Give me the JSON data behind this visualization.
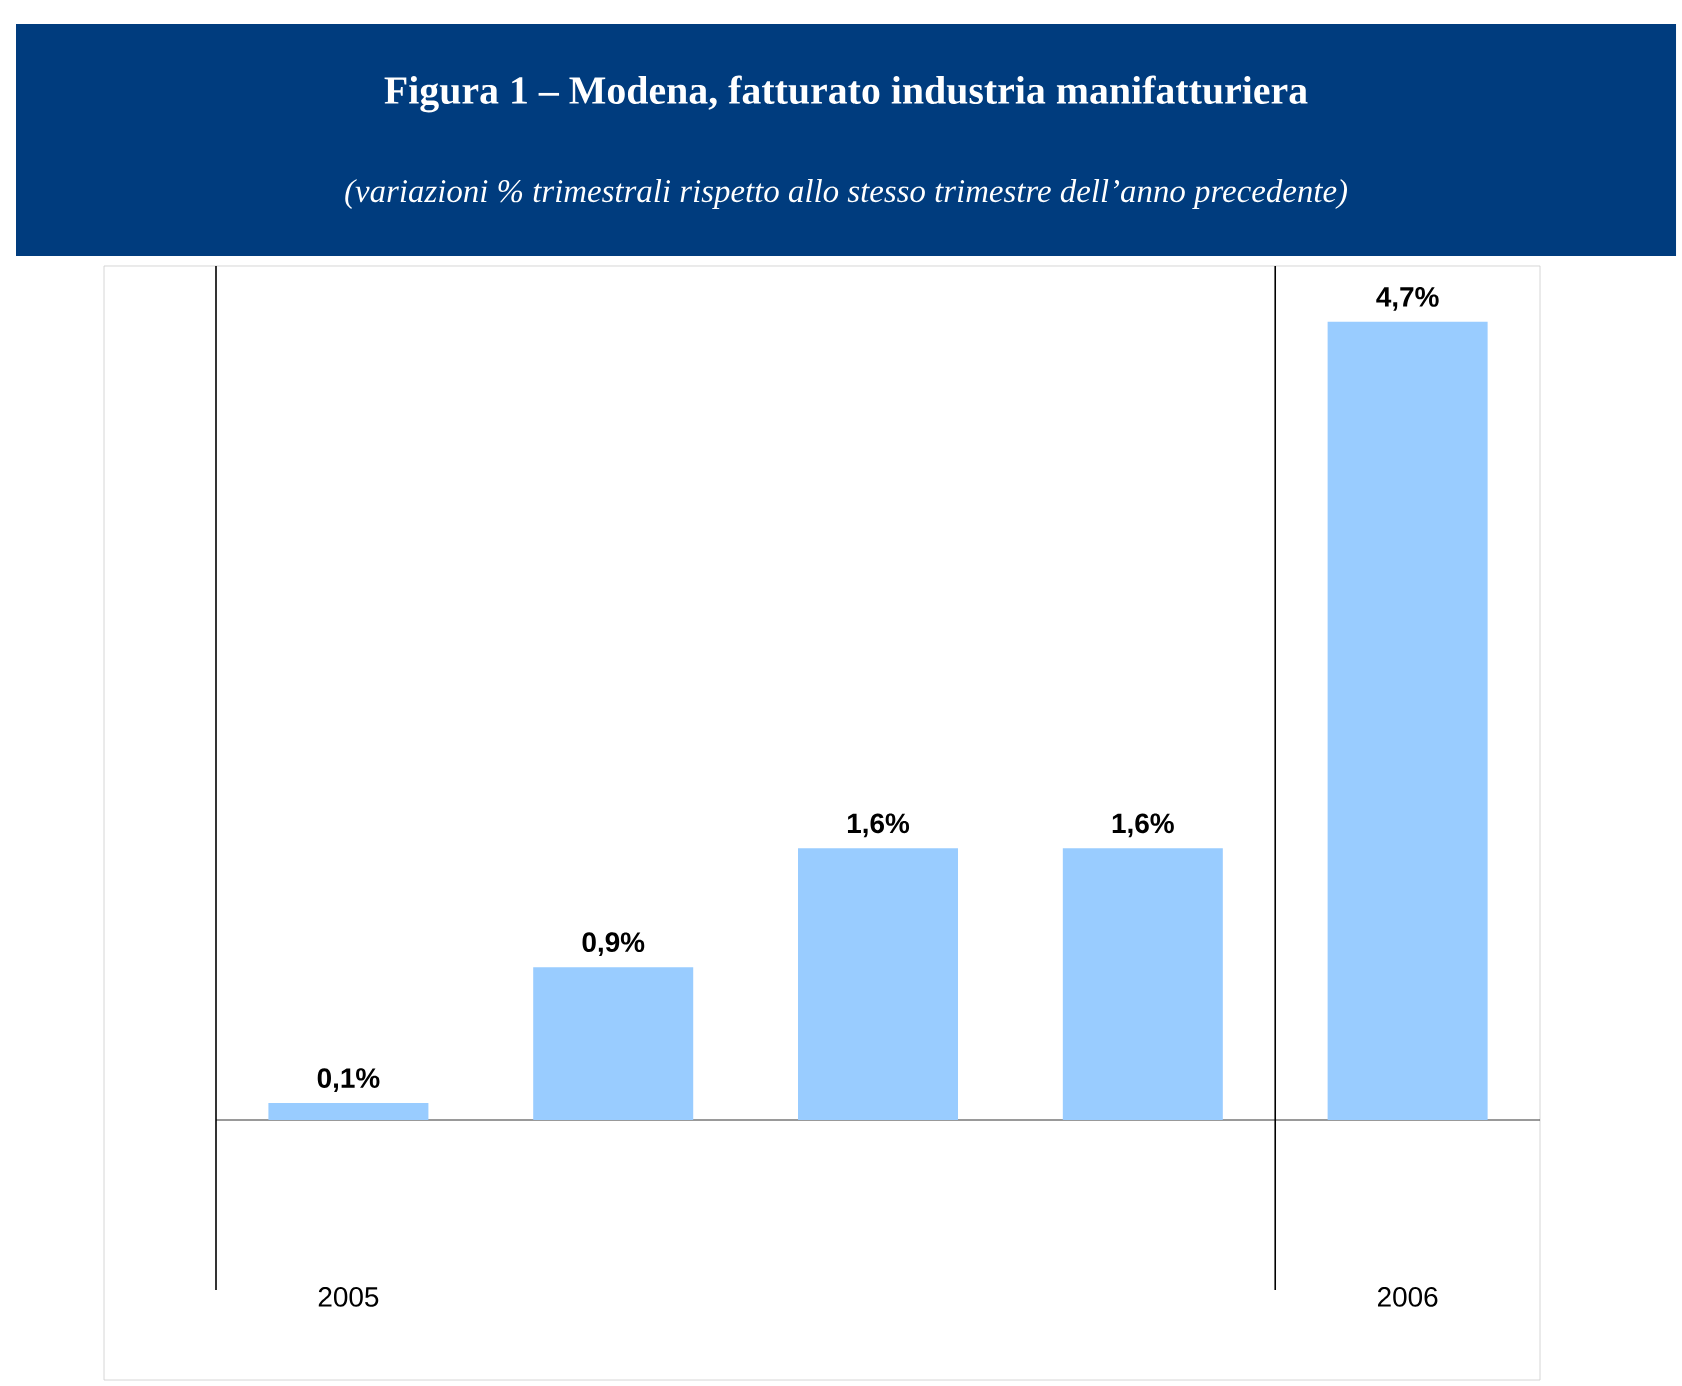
{
  "chart_data": {
    "type": "bar",
    "title": "Figura 1 – Modena, fatturato industria manifatturiera",
    "subtitle": "(variazioni % trimestrali rispetto allo stesso trimestre dell’anno precedente)",
    "categories": [
      "2005",
      null,
      null,
      null,
      "2006"
    ],
    "values": [
      0.1,
      0.9,
      1.6,
      1.6,
      4.7
    ],
    "value_labels": [
      "0,1%",
      "0,9%",
      "1,6%",
      "1,6%",
      "4,7%"
    ],
    "color": "#99ccff"
  }
}
